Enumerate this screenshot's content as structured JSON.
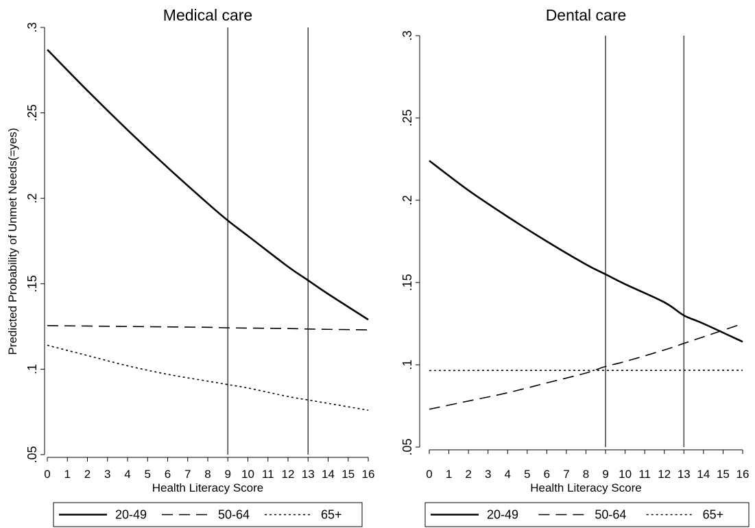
{
  "figure": {
    "ylabel": "Predicted Probability of Unmet Needs(=yes)"
  },
  "chart_data": [
    {
      "type": "line",
      "title": "Medical care",
      "xlabel": "Health Literacy Score",
      "ylabel": "Predicted Probability of Unmet Needs(=yes)",
      "xlim": [
        0,
        16
      ],
      "ylim": [
        0.05,
        0.3
      ],
      "x_ticks": [
        0,
        1,
        2,
        3,
        4,
        5,
        6,
        7,
        8,
        9,
        10,
        11,
        12,
        13,
        14,
        15,
        16
      ],
      "y_ticks": [
        0.05,
        0.1,
        0.15,
        0.2,
        0.25,
        0.3
      ],
      "y_tick_labels": [
        ".05",
        ".1",
        ".15",
        ".2",
        ".25",
        ".3"
      ],
      "reference_lines_x": [
        9,
        13
      ],
      "grid": false,
      "legend_position": "bottom",
      "series": [
        {
          "name": "20-49",
          "style": "solid",
          "x": [
            0,
            2,
            4,
            6,
            8,
            9,
            10,
            12,
            13,
            14,
            16
          ],
          "values": [
            0.287,
            0.263,
            0.24,
            0.218,
            0.197,
            0.187,
            0.178,
            0.16,
            0.152,
            0.144,
            0.129
          ]
        },
        {
          "name": "50-64",
          "style": "dashed",
          "x": [
            0,
            4,
            8,
            9,
            12,
            13,
            16
          ],
          "values": [
            0.1255,
            0.125,
            0.1245,
            0.1242,
            0.1238,
            0.1235,
            0.123
          ]
        },
        {
          "name": "65+",
          "style": "dotted",
          "x": [
            0,
            2,
            4,
            6,
            8,
            9,
            10,
            12,
            13,
            14,
            16
          ],
          "values": [
            0.114,
            0.108,
            0.102,
            0.097,
            0.093,
            0.091,
            0.089,
            0.084,
            0.082,
            0.08,
            0.076
          ]
        }
      ]
    },
    {
      "type": "line",
      "title": "Dental care",
      "xlabel": "Health Literacy Score",
      "ylabel": "",
      "xlim": [
        0,
        16
      ],
      "ylim": [
        0.05,
        0.3
      ],
      "x_ticks": [
        0,
        1,
        2,
        3,
        4,
        5,
        6,
        7,
        8,
        9,
        10,
        11,
        12,
        13,
        14,
        15,
        16
      ],
      "y_ticks": [
        0.05,
        0.1,
        0.15,
        0.2,
        0.25,
        0.3
      ],
      "y_tick_labels": [
        ".05",
        ".1",
        ".15",
        ".2",
        ".25",
        ".3"
      ],
      "reference_lines_x": [
        9,
        13
      ],
      "grid": false,
      "legend_position": "bottom",
      "series": [
        {
          "name": "20-49",
          "style": "solid",
          "x": [
            0,
            2,
            4,
            6,
            8,
            9,
            10,
            12,
            13,
            14,
            16
          ],
          "values": [
            0.224,
            0.206,
            0.19,
            0.175,
            0.161,
            0.155,
            0.149,
            0.138,
            0.13,
            0.125,
            0.114
          ]
        },
        {
          "name": "50-64",
          "style": "dashed",
          "x": [
            0,
            2,
            4,
            6,
            8,
            9,
            10,
            12,
            13,
            14,
            16
          ],
          "values": [
            0.073,
            0.078,
            0.083,
            0.089,
            0.095,
            0.099,
            0.102,
            0.109,
            0.113,
            0.117,
            0.125
          ]
        },
        {
          "name": "65+",
          "style": "dotted",
          "x": [
            0,
            4,
            8,
            9,
            12,
            13,
            16
          ],
          "values": [
            0.0965,
            0.0966,
            0.0966,
            0.0966,
            0.0966,
            0.0967,
            0.0967
          ]
        }
      ]
    }
  ]
}
